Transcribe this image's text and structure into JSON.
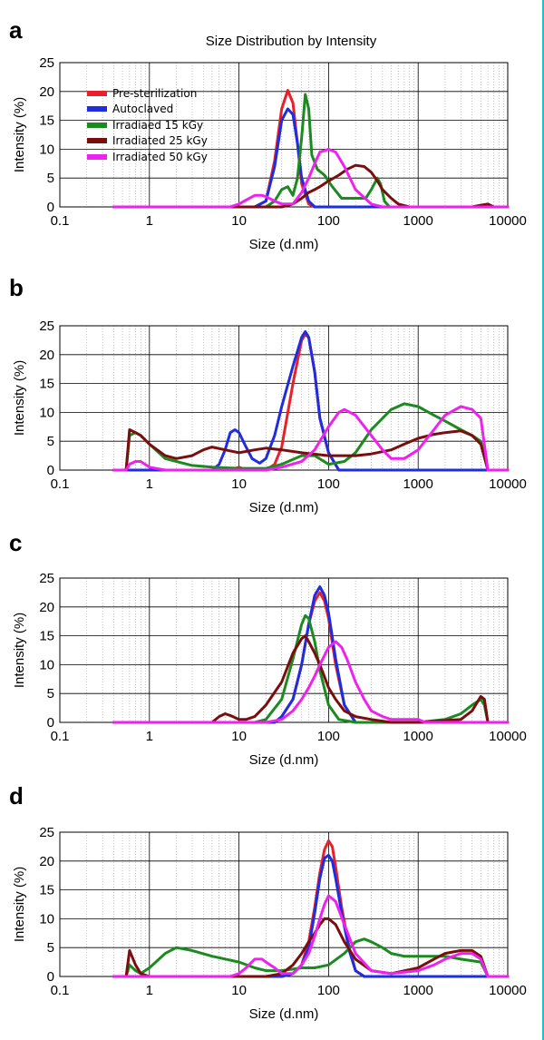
{
  "chart_data": [
    {
      "panel": "a",
      "type": "line",
      "title": "Size Distribution by Intensity",
      "xlabel": "Size (d.nm)",
      "ylabel": "Intensity (%)",
      "xscale": "log",
      "xlim": [
        0.1,
        10000
      ],
      "ylim": [
        0,
        25
      ],
      "xticks": [
        "0.1",
        "1",
        "10",
        "100",
        "1000",
        "10000"
      ],
      "yticks": [
        "0",
        "5",
        "10",
        "15",
        "20",
        "25"
      ],
      "grid": true,
      "legend": "top-left",
      "series": [
        {
          "name": "Pre-sterilization",
          "color": "#e8202a",
          "x": [
            0.4,
            15,
            20,
            25,
            30,
            35,
            40,
            45,
            50,
            60,
            70,
            10000
          ],
          "y": [
            0,
            0,
            1,
            8,
            17,
            20.2,
            18,
            11,
            4,
            0.5,
            0,
            0
          ]
        },
        {
          "name": "Autoclaved",
          "color": "#1f2de0",
          "x": [
            0.4,
            15,
            20,
            25,
            30,
            35,
            40,
            45,
            50,
            60,
            70,
            10000
          ],
          "y": [
            0,
            0,
            1,
            7,
            15,
            17,
            16,
            11,
            5,
            1,
            0,
            0
          ]
        },
        {
          "name": "Irradiaed 15 kGy",
          "color": "#1b8a1f",
          "x": [
            0.4,
            20,
            25,
            30,
            35,
            40,
            45,
            50,
            55,
            60,
            65,
            75,
            90,
            110,
            140,
            200,
            260,
            300,
            350,
            380,
            420,
            480,
            600,
            10000
          ],
          "y": [
            0,
            0,
            1,
            3,
            3.5,
            2,
            5,
            12,
            19.5,
            17,
            9,
            6.5,
            5.5,
            3.5,
            1.5,
            1.5,
            1.5,
            3,
            5,
            4,
            1,
            0,
            0,
            0
          ]
        },
        {
          "name": "Irradiated 25 kGy",
          "color": "#7a0e0e",
          "x": [
            0.4,
            30,
            40,
            50,
            60,
            70,
            80,
            100,
            130,
            160,
            200,
            250,
            300,
            350,
            400,
            500,
            600,
            800,
            1000,
            4000,
            5000,
            6000,
            7000,
            10000
          ],
          "y": [
            0,
            0,
            0.5,
            1.5,
            2.5,
            3,
            3.5,
            4.5,
            5.5,
            6.5,
            7.2,
            7,
            6,
            4.5,
            3,
            1.5,
            0.5,
            0,
            0,
            0,
            0.3,
            0.5,
            0,
            0
          ]
        },
        {
          "name": "Irradiated 50 kGy",
          "color": "#ee22ee",
          "x": [
            0.4,
            8,
            10,
            12,
            15,
            18,
            20,
            25,
            30,
            40,
            50,
            60,
            70,
            80,
            100,
            120,
            150,
            200,
            300,
            400,
            10000
          ],
          "y": [
            0,
            0,
            0.5,
            1.2,
            2,
            2,
            1.8,
            1,
            0.5,
            0.5,
            2.5,
            5,
            7.5,
            9.5,
            10,
            9.5,
            7,
            3,
            0.5,
            0,
            0
          ]
        }
      ]
    },
    {
      "panel": "b",
      "type": "line",
      "title": "",
      "xlabel": "Size (d.nm)",
      "ylabel": "Intensity (%)",
      "xscale": "log",
      "xlim": [
        0.1,
        10000
      ],
      "ylim": [
        0,
        25
      ],
      "xticks": [
        "0.1",
        "1",
        "10",
        "100",
        "1000",
        "10000"
      ],
      "yticks": [
        "0",
        "5",
        "10",
        "15",
        "20",
        "25"
      ],
      "grid": true,
      "series": [
        {
          "name": "Pre-sterilization",
          "color": "#e8202a",
          "x": [
            0.4,
            8,
            10,
            12,
            15,
            20,
            25,
            30,
            40,
            50,
            55,
            60,
            70,
            80,
            100,
            130,
            150,
            10000
          ],
          "y": [
            0,
            0,
            0.5,
            0,
            0,
            0,
            1,
            4,
            15,
            22.5,
            23.5,
            23,
            17,
            9,
            3,
            0,
            0,
            0
          ]
        },
        {
          "name": "Autoclaved",
          "color": "#1f2de0",
          "x": [
            0.4,
            5,
            6,
            7,
            8,
            9,
            10,
            12,
            14,
            17,
            20,
            25,
            30,
            40,
            50,
            55,
            60,
            70,
            80,
            100,
            130,
            150,
            10000
          ],
          "y": [
            0,
            0,
            1,
            3.5,
            6.5,
            7,
            6.5,
            4,
            2,
            1.2,
            2,
            6,
            11,
            18,
            23,
            24,
            23,
            17,
            9,
            3,
            0,
            0,
            0
          ]
        },
        {
          "name": "Irradiaed 15 kGy",
          "color": "#1b8a1f",
          "x": [
            0.4,
            0.55,
            0.6,
            0.7,
            0.8,
            1,
            1.5,
            2,
            3,
            5,
            10,
            20,
            30,
            50,
            70,
            100,
            150,
            200,
            300,
            500,
            700,
            1000,
            1500,
            2000,
            3000,
            4000,
            5000,
            6000,
            10000
          ],
          "y": [
            0,
            0,
            6,
            6.5,
            6,
            4.5,
            2,
            1.5,
            0.8,
            0.5,
            0.3,
            0.3,
            1,
            2.5,
            2.5,
            1,
            1.5,
            3,
            7,
            10.5,
            11.5,
            11,
            9.5,
            8.5,
            7,
            6,
            5,
            0,
            0
          ]
        },
        {
          "name": "Irradiated 25 kGy",
          "color": "#7a0e0e",
          "x": [
            0.4,
            0.55,
            0.6,
            0.7,
            0.8,
            1,
            1.5,
            2,
            3,
            4,
            5,
            7,
            10,
            15,
            20,
            30,
            50,
            100,
            200,
            300,
            500,
            700,
            1000,
            1500,
            2000,
            3000,
            4000,
            5000,
            6000,
            10000
          ],
          "y": [
            0,
            0,
            7,
            6.5,
            6,
            4.5,
            2.5,
            2,
            2.5,
            3.5,
            4,
            3.5,
            3,
            3.5,
            3.8,
            3.5,
            3,
            2.5,
            2.5,
            2.8,
            3.5,
            4.5,
            5.5,
            6.2,
            6.5,
            6.8,
            6,
            4.5,
            0,
            0
          ]
        },
        {
          "name": "Irradiated 50 kGy",
          "color": "#ee22ee",
          "x": [
            0.4,
            0.55,
            0.6,
            0.7,
            0.8,
            1,
            1.5,
            2,
            5,
            10,
            20,
            30,
            50,
            70,
            100,
            130,
            150,
            200,
            300,
            400,
            500,
            700,
            1000,
            1500,
            2000,
            3000,
            4000,
            5000,
            6000,
            10000
          ],
          "y": [
            0,
            0,
            1,
            1.5,
            1.5,
            0.5,
            0,
            0,
            0,
            0,
            0,
            0.5,
            1.5,
            3.5,
            7.5,
            10,
            10.5,
            9.5,
            6,
            3.5,
            2,
            2,
            3.5,
            7,
            9.5,
            11,
            10.5,
            9,
            0,
            0
          ]
        }
      ]
    },
    {
      "panel": "c",
      "type": "line",
      "title": "",
      "xlabel": "Size (d.nm)",
      "ylabel": "Intensity (%)",
      "xscale": "log",
      "xlim": [
        0.1,
        10000
      ],
      "ylim": [
        0,
        25
      ],
      "xticks": [
        "0.1",
        "1",
        "10",
        "100",
        "1000",
        "10000"
      ],
      "yticks": [
        "0",
        "5",
        "10",
        "15",
        "20",
        "25"
      ],
      "grid": true,
      "series": [
        {
          "name": "Pre-sterilization",
          "color": "#e8202a",
          "x": [
            0.4,
            25,
            30,
            40,
            50,
            60,
            70,
            80,
            90,
            100,
            120,
            150,
            200,
            10000
          ],
          "y": [
            0,
            0,
            1,
            4,
            10,
            17,
            21,
            22.5,
            21,
            18,
            10,
            3,
            0,
            0
          ]
        },
        {
          "name": "Autoclaved",
          "color": "#1f2de0",
          "x": [
            0.4,
            25,
            30,
            40,
            50,
            60,
            70,
            80,
            90,
            100,
            120,
            150,
            200,
            10000
          ],
          "y": [
            0,
            0,
            1,
            4,
            10,
            17,
            22,
            23.5,
            22,
            19,
            11,
            3,
            0,
            0
          ]
        },
        {
          "name": "Irradiaed 15 kGy",
          "color": "#1b8a1f",
          "x": [
            0.4,
            15,
            20,
            30,
            40,
            50,
            55,
            60,
            70,
            80,
            100,
            130,
            200,
            400,
            1000,
            2000,
            3000,
            4000,
            5000,
            5500,
            6000,
            10000
          ],
          "y": [
            0,
            0,
            0.5,
            4,
            11,
            17,
            18.5,
            18,
            14,
            9,
            3,
            0.5,
            0,
            0,
            0,
            0.5,
            1.5,
            3,
            4,
            3,
            0,
            0
          ]
        },
        {
          "name": "Irradiated 25 kGy",
          "color": "#7a0e0e",
          "x": [
            0.4,
            5,
            6,
            7,
            8,
            10,
            12,
            15,
            20,
            30,
            40,
            50,
            55,
            60,
            70,
            80,
            100,
            120,
            150,
            200,
            300,
            500,
            1000,
            3000,
            4000,
            5000,
            5500,
            6000,
            10000
          ],
          "y": [
            0,
            0,
            1,
            1.5,
            1.2,
            0.5,
            0.5,
            1,
            3,
            7,
            12,
            14.5,
            15,
            14,
            12,
            10,
            6,
            4,
            2,
            1,
            0.5,
            0,
            0,
            0.5,
            2,
            4.5,
            4,
            0,
            0
          ]
        },
        {
          "name": "Irradiated 50 kGy",
          "color": "#ee22ee",
          "x": [
            0.4,
            20,
            30,
            40,
            50,
            60,
            70,
            80,
            100,
            120,
            140,
            160,
            200,
            250,
            300,
            400,
            500,
            700,
            900,
            1000,
            1200,
            1500,
            10000
          ],
          "y": [
            0,
            0,
            0.5,
            2,
            4,
            6,
            8,
            10,
            13,
            14,
            13,
            11,
            7,
            4,
            2,
            1,
            0.5,
            0.5,
            0.5,
            0.5,
            0,
            0,
            0
          ]
        }
      ]
    },
    {
      "panel": "d",
      "type": "line",
      "title": "",
      "xlabel": "Size (d.nm)",
      "ylabel": "Intensity (%)",
      "xscale": "log",
      "xlim": [
        0.1,
        10000
      ],
      "ylim": [
        0,
        25
      ],
      "xticks": [
        "0.1",
        "1",
        "10",
        "100",
        "1000",
        "10000"
      ],
      "yticks": [
        "0",
        "5",
        "10",
        "15",
        "20",
        "25"
      ],
      "grid": true,
      "series": [
        {
          "name": "Pre-sterilization",
          "color": "#e8202a",
          "x": [
            0.4,
            30,
            40,
            50,
            60,
            70,
            80,
            90,
            100,
            110,
            120,
            140,
            170,
            200,
            250,
            10000
          ],
          "y": [
            0,
            0,
            0.5,
            2,
            6,
            12,
            18,
            22,
            23.5,
            22.5,
            19,
            12,
            5,
            1,
            0,
            0
          ]
        },
        {
          "name": "Autoclaved",
          "color": "#1f2de0",
          "x": [
            0.4,
            30,
            40,
            50,
            60,
            70,
            80,
            90,
            100,
            110,
            120,
            140,
            170,
            200,
            250,
            10000
          ],
          "y": [
            0,
            0,
            0.5,
            2,
            5,
            11,
            17,
            20.5,
            21,
            20,
            17,
            11,
            4.5,
            1,
            0,
            0
          ]
        },
        {
          "name": "Irradiaed 15 kGy",
          "color": "#1b8a1f",
          "x": [
            0.4,
            0.55,
            0.6,
            0.7,
            0.8,
            1,
            1.5,
            2,
            3,
            5,
            10,
            15,
            20,
            30,
            50,
            70,
            100,
            150,
            200,
            250,
            300,
            400,
            500,
            700,
            1000,
            2000,
            3000,
            5000,
            6000,
            10000
          ],
          "y": [
            0,
            0,
            2,
            1,
            0.5,
            1.5,
            4,
            5,
            4.5,
            3.5,
            2.5,
            1.5,
            1,
            1,
            1.5,
            1.5,
            2,
            4,
            6,
            6.5,
            6,
            5,
            4,
            3.5,
            3.5,
            3.5,
            3,
            2.5,
            0,
            0
          ]
        },
        {
          "name": "Irradiated 25 kGy",
          "color": "#7a0e0e",
          "x": [
            0.4,
            0.55,
            0.6,
            0.7,
            0.8,
            1,
            1.5,
            10,
            20,
            30,
            40,
            50,
            60,
            70,
            80,
            90,
            100,
            120,
            150,
            200,
            300,
            500,
            1000,
            1500,
            2000,
            3000,
            4000,
            5000,
            6000,
            10000
          ],
          "y": [
            0,
            0,
            4.5,
            2,
            0.5,
            0,
            0,
            0,
            0,
            0.5,
            2,
            4,
            6,
            7.5,
            9,
            10,
            10,
            9,
            6,
            3,
            1,
            0.5,
            1.5,
            3,
            4,
            4.5,
            4.5,
            3.5,
            0,
            0
          ]
        },
        {
          "name": "Irradiated 50 kGy",
          "color": "#ee22ee",
          "x": [
            0.4,
            8,
            10,
            12,
            15,
            18,
            20,
            25,
            30,
            40,
            50,
            60,
            70,
            80,
            90,
            100,
            120,
            150,
            200,
            300,
            500,
            1000,
            1500,
            2000,
            3000,
            4000,
            5000,
            6000,
            10000
          ],
          "y": [
            0,
            0,
            0.5,
            1.5,
            3,
            3,
            2.5,
            1.5,
            0.5,
            0.5,
            2,
            4,
            7,
            10,
            12.5,
            14,
            13,
            9,
            4,
            1,
            0.5,
            1,
            2,
            3,
            4,
            4,
            3,
            0,
            0
          ]
        }
      ]
    }
  ]
}
